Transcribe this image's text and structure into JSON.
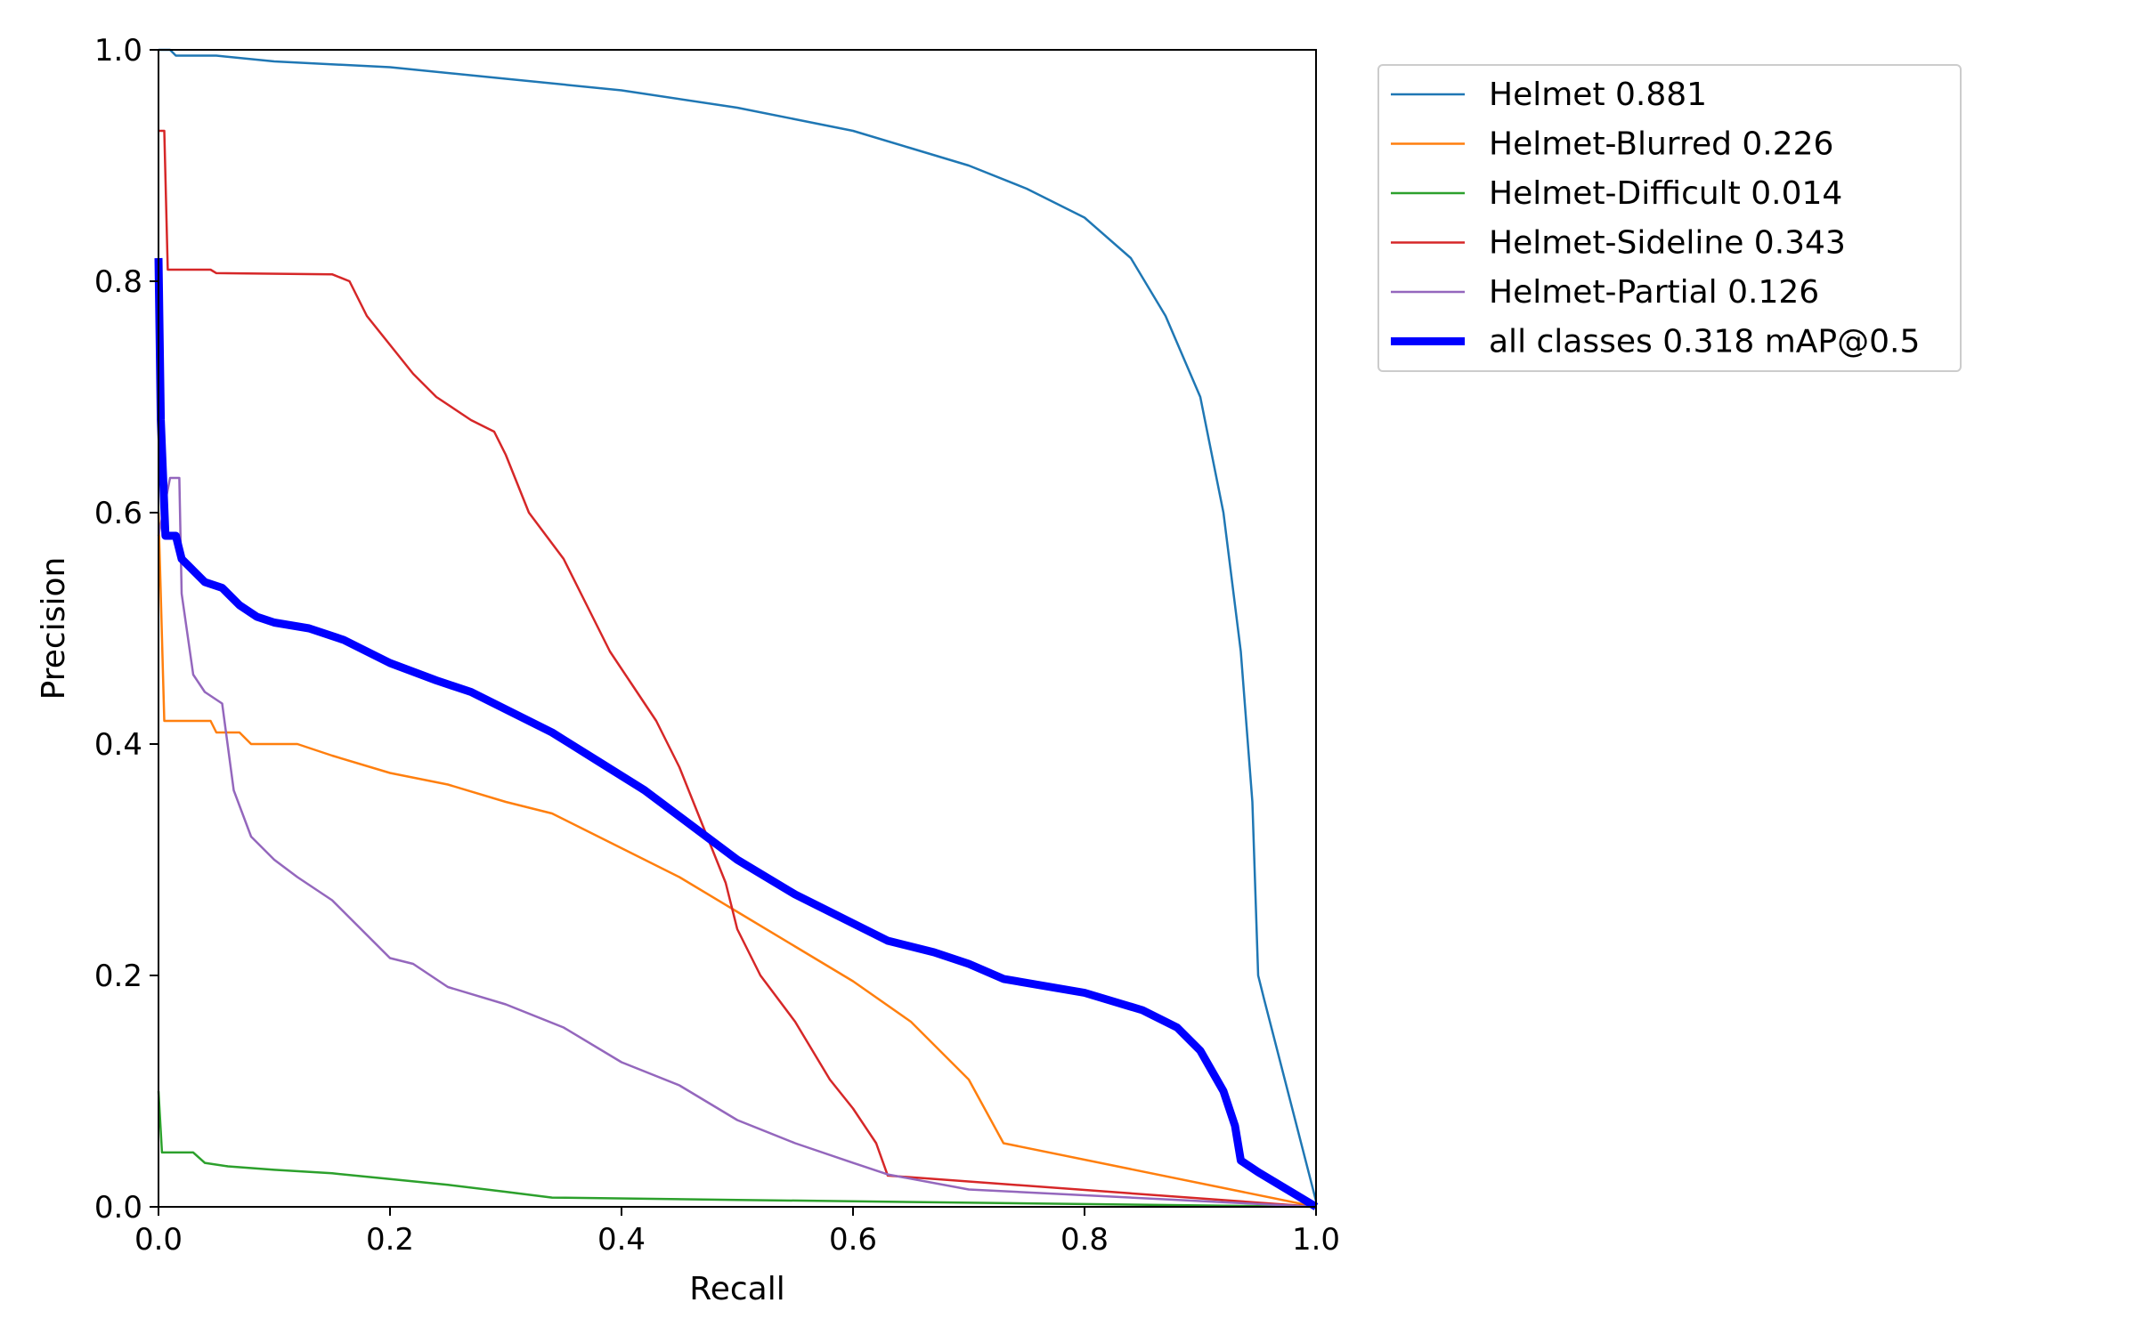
{
  "chart_data": {
    "type": "line",
    "title": "",
    "xlabel": "Recall",
    "ylabel": "Precision",
    "xlim": [
      0,
      1
    ],
    "ylim": [
      0,
      1
    ],
    "xticks": [
      "0.0",
      "0.2",
      "0.4",
      "0.6",
      "0.8",
      "1.0"
    ],
    "yticks": [
      "0.0",
      "0.2",
      "0.4",
      "0.6",
      "0.8",
      "1.0"
    ],
    "grid": false,
    "legend_position": "outside-top-right",
    "series": [
      {
        "name": "Helmet 0.881",
        "color": "#1f77b4",
        "thick": false,
        "points": [
          [
            0,
            1.0
          ],
          [
            0.01,
            1.0
          ],
          [
            0.015,
            0.995
          ],
          [
            0.05,
            0.995
          ],
          [
            0.1,
            0.99
          ],
          [
            0.2,
            0.985
          ],
          [
            0.3,
            0.975
          ],
          [
            0.4,
            0.965
          ],
          [
            0.5,
            0.95
          ],
          [
            0.55,
            0.94
          ],
          [
            0.6,
            0.93
          ],
          [
            0.65,
            0.915
          ],
          [
            0.7,
            0.9
          ],
          [
            0.75,
            0.88
          ],
          [
            0.8,
            0.855
          ],
          [
            0.84,
            0.82
          ],
          [
            0.87,
            0.77
          ],
          [
            0.9,
            0.7
          ],
          [
            0.92,
            0.6
          ],
          [
            0.935,
            0.48
          ],
          [
            0.945,
            0.35
          ],
          [
            0.95,
            0.2
          ],
          [
            0.955,
            0.18
          ],
          [
            1.0,
            0.005
          ]
        ]
      },
      {
        "name": "Helmet-Blurred 0.226",
        "color": "#ff7f0e",
        "thick": false,
        "points": [
          [
            0,
            0.6
          ],
          [
            0.005,
            0.42
          ],
          [
            0.045,
            0.42
          ],
          [
            0.05,
            0.41
          ],
          [
            0.07,
            0.41
          ],
          [
            0.08,
            0.4
          ],
          [
            0.12,
            0.4
          ],
          [
            0.15,
            0.39
          ],
          [
            0.2,
            0.375
          ],
          [
            0.25,
            0.365
          ],
          [
            0.3,
            0.35
          ],
          [
            0.34,
            0.34
          ],
          [
            0.37,
            0.325
          ],
          [
            0.4,
            0.31
          ],
          [
            0.45,
            0.285
          ],
          [
            0.5,
            0.255
          ],
          [
            0.55,
            0.225
          ],
          [
            0.6,
            0.195
          ],
          [
            0.65,
            0.16
          ],
          [
            0.7,
            0.11
          ],
          [
            0.73,
            0.055
          ],
          [
            1.0,
            0.0
          ]
        ]
      },
      {
        "name": "Helmet-Difficult 0.014",
        "color": "#2ca02c",
        "thick": false,
        "points": [
          [
            0,
            0.1
          ],
          [
            0.003,
            0.047
          ],
          [
            0.03,
            0.047
          ],
          [
            0.04,
            0.038
          ],
          [
            0.06,
            0.035
          ],
          [
            0.1,
            0.032
          ],
          [
            0.15,
            0.029
          ],
          [
            0.2,
            0.024
          ],
          [
            0.25,
            0.019
          ],
          [
            0.3,
            0.013
          ],
          [
            0.34,
            0.008
          ],
          [
            0.5,
            0.006
          ],
          [
            1.0,
            0.0
          ]
        ]
      },
      {
        "name": "Helmet-Sideline 0.343",
        "color": "#d62728",
        "thick": false,
        "points": [
          [
            0,
            0.93
          ],
          [
            0.005,
            0.93
          ],
          [
            0.008,
            0.81
          ],
          [
            0.045,
            0.81
          ],
          [
            0.05,
            0.807
          ],
          [
            0.15,
            0.806
          ],
          [
            0.165,
            0.8
          ],
          [
            0.18,
            0.77
          ],
          [
            0.2,
            0.745
          ],
          [
            0.22,
            0.72
          ],
          [
            0.24,
            0.7
          ],
          [
            0.27,
            0.68
          ],
          [
            0.29,
            0.67
          ],
          [
            0.3,
            0.65
          ],
          [
            0.32,
            0.6
          ],
          [
            0.35,
            0.56
          ],
          [
            0.37,
            0.52
          ],
          [
            0.39,
            0.48
          ],
          [
            0.41,
            0.45
          ],
          [
            0.43,
            0.42
          ],
          [
            0.45,
            0.38
          ],
          [
            0.47,
            0.33
          ],
          [
            0.49,
            0.28
          ],
          [
            0.5,
            0.24
          ],
          [
            0.52,
            0.2
          ],
          [
            0.55,
            0.16
          ],
          [
            0.58,
            0.11
          ],
          [
            0.6,
            0.085
          ],
          [
            0.62,
            0.055
          ],
          [
            0.63,
            0.027
          ],
          [
            1.0,
            0.0
          ]
        ]
      },
      {
        "name": "Helmet-Partial 0.126",
        "color": "#9467bd",
        "thick": false,
        "points": [
          [
            0,
            0.58
          ],
          [
            0.01,
            0.63
          ],
          [
            0.018,
            0.63
          ],
          [
            0.02,
            0.53
          ],
          [
            0.03,
            0.46
          ],
          [
            0.04,
            0.445
          ],
          [
            0.055,
            0.435
          ],
          [
            0.065,
            0.36
          ],
          [
            0.08,
            0.32
          ],
          [
            0.1,
            0.3
          ],
          [
            0.12,
            0.285
          ],
          [
            0.15,
            0.265
          ],
          [
            0.17,
            0.245
          ],
          [
            0.2,
            0.215
          ],
          [
            0.22,
            0.21
          ],
          [
            0.25,
            0.19
          ],
          [
            0.3,
            0.175
          ],
          [
            0.35,
            0.155
          ],
          [
            0.4,
            0.125
          ],
          [
            0.45,
            0.105
          ],
          [
            0.5,
            0.075
          ],
          [
            0.55,
            0.055
          ],
          [
            0.6,
            0.038
          ],
          [
            0.63,
            0.028
          ],
          [
            0.7,
            0.015
          ],
          [
            1.0,
            0.0
          ]
        ]
      },
      {
        "name": "all classes 0.318 mAP@0.5",
        "color": "#0000ff",
        "thick": true,
        "points": [
          [
            0,
            0.82
          ],
          [
            0.002,
            0.68
          ],
          [
            0.006,
            0.58
          ],
          [
            0.015,
            0.58
          ],
          [
            0.02,
            0.56
          ],
          [
            0.03,
            0.55
          ],
          [
            0.04,
            0.54
          ],
          [
            0.055,
            0.535
          ],
          [
            0.07,
            0.52
          ],
          [
            0.085,
            0.51
          ],
          [
            0.1,
            0.505
          ],
          [
            0.13,
            0.5
          ],
          [
            0.16,
            0.49
          ],
          [
            0.2,
            0.47
          ],
          [
            0.24,
            0.455
          ],
          [
            0.27,
            0.445
          ],
          [
            0.3,
            0.43
          ],
          [
            0.34,
            0.41
          ],
          [
            0.38,
            0.385
          ],
          [
            0.42,
            0.36
          ],
          [
            0.46,
            0.33
          ],
          [
            0.5,
            0.3
          ],
          [
            0.55,
            0.27
          ],
          [
            0.6,
            0.245
          ],
          [
            0.63,
            0.23
          ],
          [
            0.67,
            0.22
          ],
          [
            0.7,
            0.21
          ],
          [
            0.73,
            0.197
          ],
          [
            0.8,
            0.185
          ],
          [
            0.85,
            0.17
          ],
          [
            0.88,
            0.155
          ],
          [
            0.9,
            0.135
          ],
          [
            0.92,
            0.1
          ],
          [
            0.93,
            0.07
          ],
          [
            0.935,
            0.04
          ],
          [
            0.95,
            0.03
          ],
          [
            1.0,
            0.0
          ]
        ]
      }
    ]
  }
}
